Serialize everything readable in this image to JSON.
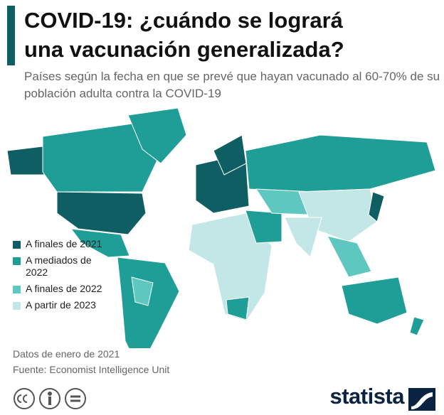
{
  "header": {
    "title": [
      "COVID-19: ¿cuándo se logrará",
      "una vacunación generalizada?"
    ],
    "subtitle": "Países según la fecha en que se prevé que hayan vacunado al 60-70% de su población adulta contra la COVID-19"
  },
  "legend": [
    {
      "label": "A finales de 2021",
      "color": "#0e5e63"
    },
    {
      "label": "A mediados de 2022",
      "color": "#1f9e98"
    },
    {
      "label": "A finales de 2022",
      "color": "#5ec8c0"
    },
    {
      "label": "A partir de 2023",
      "color": "#c2e7e6"
    }
  ],
  "footer": {
    "notes": [
      "Datos de enero de 2021",
      "Fuente: Economist Intelligence Unit"
    ],
    "brand": "statista"
  }
}
